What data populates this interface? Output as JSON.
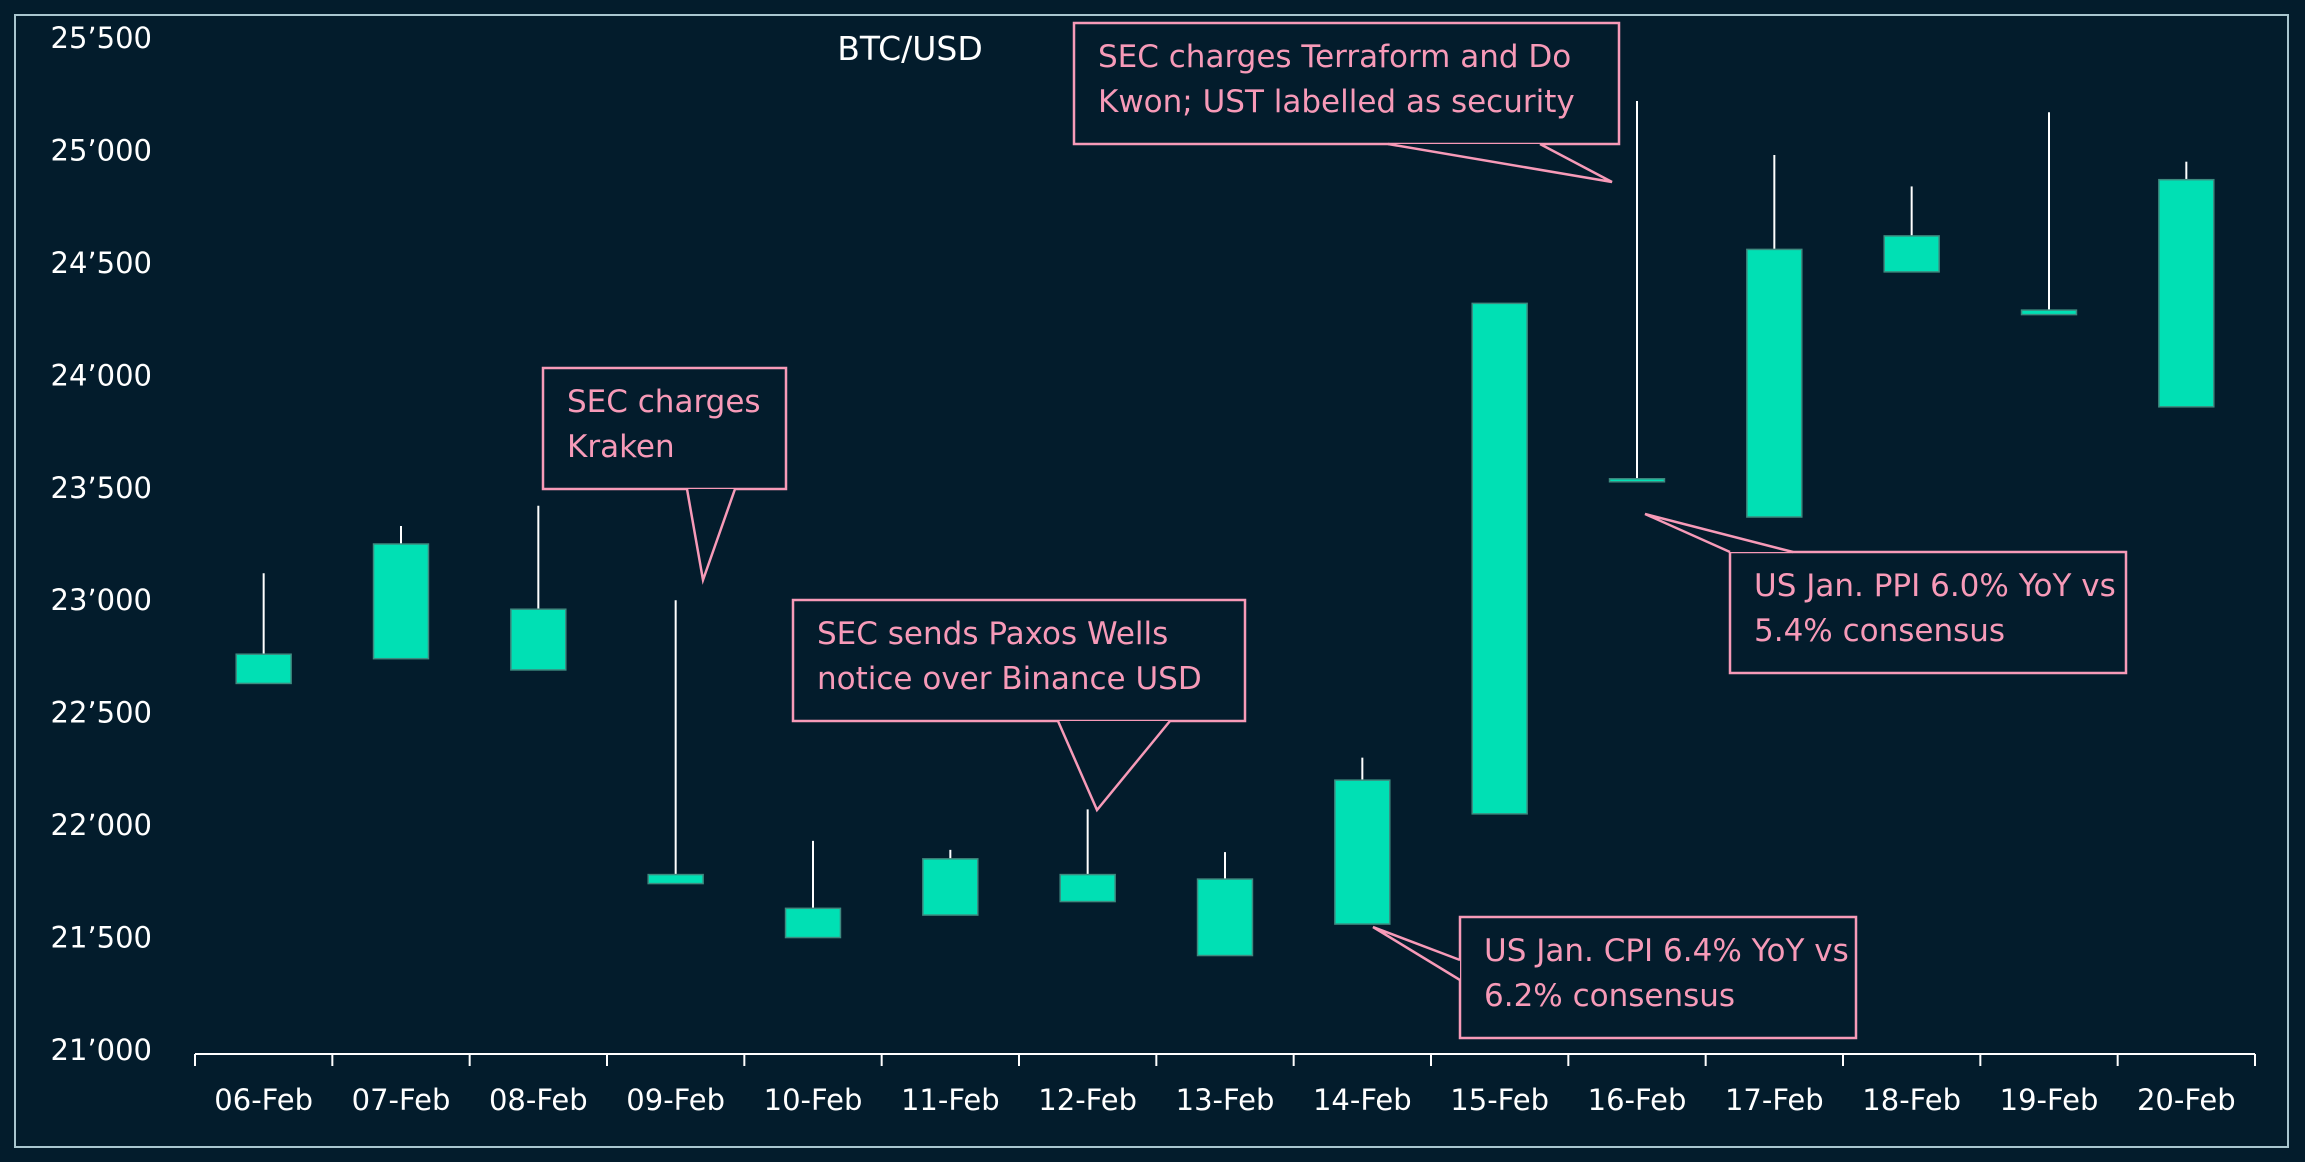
{
  "chart_data": {
    "type": "candlestick",
    "title": "BTC/USD",
    "xlabel": "",
    "ylabel": "",
    "ylim": [
      21000,
      25500
    ],
    "y_ticks": [
      "21’000",
      "21’500",
      "22’000",
      "22’500",
      "23’000",
      "23’500",
      "24’000",
      "24’500",
      "25’000",
      "25’500"
    ],
    "grid": false,
    "colors": {
      "candle": "#00e0b4",
      "background": "#031c2c",
      "annotation": "#f79ab8",
      "axis": "#ffffff"
    },
    "categories": [
      "06-Feb",
      "07-Feb",
      "08-Feb",
      "09-Feb",
      "10-Feb",
      "11-Feb",
      "12-Feb",
      "13-Feb",
      "14-Feb",
      "15-Feb",
      "16-Feb",
      "17-Feb",
      "18-Feb",
      "19-Feb",
      "20-Feb"
    ],
    "series": [
      {
        "open": [
          22630,
          22740,
          22960,
          21780,
          21500,
          21600,
          21660,
          21760,
          21560,
          22050,
          23540,
          24560,
          24620,
          24290,
          23860
        ],
        "close": [
          22760,
          23250,
          22690,
          21740,
          21630,
          21850,
          21780,
          21420,
          22200,
          24320,
          23530,
          23370,
          24460,
          24270,
          24870
        ],
        "high": [
          23120,
          23330,
          23420,
          23000,
          21930,
          21890,
          22070,
          21880,
          22300,
          24320,
          25220,
          24980,
          24840,
          25170,
          24950
        ],
        "low": [
          22630,
          22740,
          22690,
          21740,
          21500,
          21600,
          21660,
          21420,
          21560,
          22050,
          23530,
          23370,
          24460,
          24270,
          23860
        ]
      }
    ],
    "annotations": [
      {
        "lines": [
          "SEC charges",
          "Kraken"
        ]
      },
      {
        "lines": [
          "SEC sends Paxos Wells",
          "notice over Binance USD"
        ]
      },
      {
        "lines": [
          "US Jan. CPI 6.4% YoY vs",
          "6.2% consensus"
        ]
      },
      {
        "lines": [
          "SEC charges Terraform and Do",
          "Kwon; UST labelled as security"
        ]
      },
      {
        "lines": [
          "US Jan. PPI 6.0% YoY vs",
          "5.4% consensus"
        ]
      }
    ]
  }
}
